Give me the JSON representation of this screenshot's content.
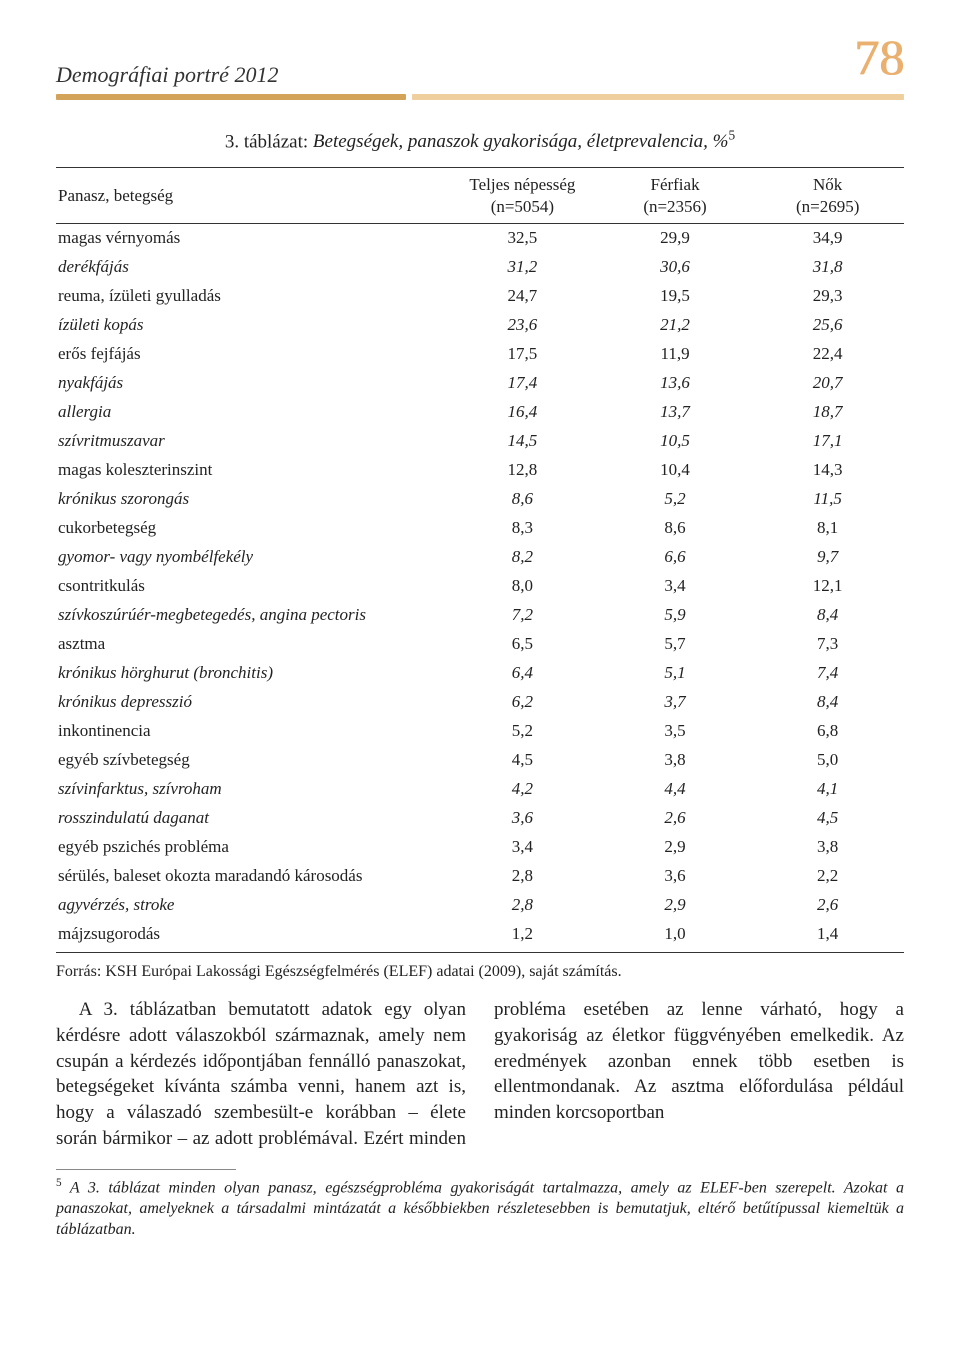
{
  "header": {
    "running_title": "Demográfiai portré 2012",
    "page_number": "78",
    "rule_color_a": "#d4a35a",
    "rule_color_b": "#efcf9d"
  },
  "table": {
    "title_lead": "3. táblázat: ",
    "title_rest": "Betegségek, panaszok gyakorisága, életprevalencia, %",
    "title_sup": "5",
    "columns": [
      {
        "label": "Panasz, betegség",
        "sub": ""
      },
      {
        "label": "Teljes népesség",
        "sub": "(n=5054)"
      },
      {
        "label": "Férfiak",
        "sub": "(n=2356)"
      },
      {
        "label": "Nők",
        "sub": "(n=2695)"
      }
    ],
    "rows": [
      {
        "label": "magas vérnyomás",
        "v": [
          "32,5",
          "29,9",
          "34,9"
        ],
        "italic": false
      },
      {
        "label": "derékfájás",
        "v": [
          "31,2",
          "30,6",
          "31,8"
        ],
        "italic": true
      },
      {
        "label": "reuma, ízületi gyulladás",
        "v": [
          "24,7",
          "19,5",
          "29,3"
        ],
        "italic": false
      },
      {
        "label": "ízületi kopás",
        "v": [
          "23,6",
          "21,2",
          "25,6"
        ],
        "italic": true
      },
      {
        "label": "erős fejfájás",
        "v": [
          "17,5",
          "11,9",
          "22,4"
        ],
        "italic": false
      },
      {
        "label": "nyakfájás",
        "v": [
          "17,4",
          "13,6",
          "20,7"
        ],
        "italic": true
      },
      {
        "label": "allergia",
        "v": [
          "16,4",
          "13,7",
          "18,7"
        ],
        "italic": true
      },
      {
        "label": "szívritmuszavar",
        "v": [
          "14,5",
          "10,5",
          "17,1"
        ],
        "italic": true
      },
      {
        "label": "magas koleszterinszint",
        "v": [
          "12,8",
          "10,4",
          "14,3"
        ],
        "italic": false
      },
      {
        "label": "krónikus szorongás",
        "v": [
          "8,6",
          "5,2",
          "11,5"
        ],
        "italic": true
      },
      {
        "label": "cukorbetegség",
        "v": [
          "8,3",
          "8,6",
          "8,1"
        ],
        "italic": false
      },
      {
        "label": "gyomor- vagy nyombélfekély",
        "v": [
          "8,2",
          "6,6",
          "9,7"
        ],
        "italic": true
      },
      {
        "label": "csontritkulás",
        "v": [
          "8,0",
          "3,4",
          "12,1"
        ],
        "italic": false
      },
      {
        "label": "szívkoszúrúér-megbetegedés, angina pectoris",
        "v": [
          "7,2",
          "5,9",
          "8,4"
        ],
        "italic": true
      },
      {
        "label": "asztma",
        "v": [
          "6,5",
          "5,7",
          "7,3"
        ],
        "italic": false
      },
      {
        "label": "krónikus hörghurut (bronchitis)",
        "v": [
          "6,4",
          "5,1",
          "7,4"
        ],
        "italic": true
      },
      {
        "label": "krónikus depresszió",
        "v": [
          "6,2",
          "3,7",
          "8,4"
        ],
        "italic": true
      },
      {
        "label": "inkontinencia",
        "v": [
          "5,2",
          "3,5",
          "6,8"
        ],
        "italic": false
      },
      {
        "label": "egyéb szívbetegség",
        "v": [
          "4,5",
          "3,8",
          "5,0"
        ],
        "italic": false
      },
      {
        "label": "szívinfarktus, szívroham",
        "v": [
          "4,2",
          "4,4",
          "4,1"
        ],
        "italic": true
      },
      {
        "label": "rosszindulatú daganat",
        "v": [
          "3,6",
          "2,6",
          "4,5"
        ],
        "italic": true
      },
      {
        "label": "egyéb pszichés probléma",
        "v": [
          "3,4",
          "2,9",
          "3,8"
        ],
        "italic": false
      },
      {
        "label": "sérülés, baleset okozta maradandó károsodás",
        "v": [
          "2,8",
          "3,6",
          "2,2"
        ],
        "italic": false
      },
      {
        "label": "agyvérzés, stroke",
        "v": [
          "2,8",
          "2,9",
          "2,6"
        ],
        "italic": true
      },
      {
        "label": "májzsugorodás",
        "v": [
          "1,2",
          "1,0",
          "1,4"
        ],
        "italic": false
      }
    ]
  },
  "source": "Forrás: KSH Európai Lakossági Egészségfelmérés (ELEF) adatai (2009), saját számítás.",
  "body_text": "A 3. táblázatban bemutatott adatok egy olyan kérdésre adott válaszokból származnak, amely nem csupán a kérdezés időpontjában fennálló panaszokat, betegségeket kívánta számba venni, hanem azt is, hogy a válaszadó szembesült-e korábban – élete során bármikor – az adott problémával. Ezért minden probléma esetében az lenne várható, hogy a gyakoriság az életkor függvényében emelkedik. Az eredmények azonban ennek több esetben is ellentmondanak. Az asztma előfordulása például minden korcsoportban",
  "footnote": {
    "marker": "5",
    "text": "A 3. táblázat minden olyan panasz, egészségprobléma gyakoriságát tartalmazza, amely az ELEF-ben szerepelt. Azokat a panaszokat, amelyeknek a társadalmi mintázatát a későbbiekben részletesebben is bemutatjuk, eltérő betűtípussal kiemeltük a táblázatban."
  }
}
